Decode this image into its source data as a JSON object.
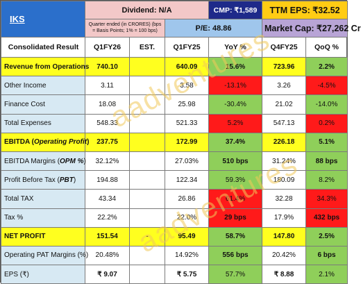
{
  "header": {
    "ticker": "IKS",
    "dividend": "Dividend: N/A",
    "cmp": "CMP: ₹1,589",
    "ttm_eps": "TTM EPS: ₹32.52",
    "note": "Quarter ended (in CRORES) (bps = Basis Points; 1% = 100 bps)",
    "pe": "P/E: 48.86",
    "market_cap": "Market Cap: ₹27,262 Cr"
  },
  "columns": [
    "Consolidated Result",
    "Q1FY26",
    "EST.",
    "Q1FY25",
    "YoY %",
    "Q4FY25",
    "QoQ %"
  ],
  "rows": [
    {
      "label": "Revenue from Operations",
      "q1fy26": "740.10",
      "est": "",
      "q1fy25": "640.09",
      "yoy": "15.6%",
      "q4fy25": "723.96",
      "qoq": "2.2%"
    },
    {
      "label": "Other Income",
      "q1fy26": "3.11",
      "est": "",
      "q1fy25": "3.58",
      "yoy": "-13.1%",
      "q4fy25": "3.26",
      "qoq": "-4.5%"
    },
    {
      "label": "Finance Cost",
      "q1fy26": "18.08",
      "est": "",
      "q1fy25": "25.98",
      "yoy": "-30.4%",
      "q4fy25": "21.02",
      "qoq": "-14.0%"
    },
    {
      "label": "Total Expenses",
      "q1fy26": "548.33",
      "est": "",
      "q1fy25": "521.33",
      "yoy": "5.2%",
      "q4fy25": "547.13",
      "qoq": "0.2%"
    },
    {
      "label_plain": "EBITDA (",
      "label_italic": "Operating Profit",
      "label_end": ")",
      "q1fy26": "237.75",
      "est": "",
      "q1fy25": "172.99",
      "yoy": "37.4%",
      "q4fy25": "226.18",
      "qoq": "5.1%"
    },
    {
      "label_plain": "EBITDA Margins (",
      "label_italic": "OPM %",
      "label_end": ")",
      "q1fy26": "32.12%",
      "est": "",
      "q1fy25": "27.03%",
      "yoy": "510 bps",
      "q4fy25": "31.24%",
      "qoq": "88 bps"
    },
    {
      "label_plain": "Profit Before Tax (",
      "label_italic": "PBT",
      "label_end": ")",
      "q1fy26": "194.88",
      "est": "",
      "q1fy25": "122.34",
      "yoy": "59.3%",
      "q4fy25": "180.09",
      "qoq": "8.2%"
    },
    {
      "label": "Total TAX",
      "q1fy26": "43.34",
      "est": "",
      "q1fy25": "26.86",
      "yoy": "61.4%",
      "q4fy25": "32.28",
      "qoq": "34.3%"
    },
    {
      "label": "Tax %",
      "q1fy26": "22.2%",
      "est": "",
      "q1fy25": "22.0%",
      "yoy": "29 bps",
      "q4fy25": "17.9%",
      "qoq": "432 bps"
    },
    {
      "label": "NET PROFIT",
      "q1fy26": "151.54",
      "est": "-",
      "q1fy25": "95.49",
      "yoy": "58.7%",
      "q4fy25": "147.80",
      "qoq": "2.5%"
    },
    {
      "label": "Operating PAT Margins (%)",
      "q1fy26": "20.48%",
      "est": "",
      "q1fy25": "14.92%",
      "yoy": "556 bps",
      "q4fy25": "20.42%",
      "qoq": "6 bps"
    },
    {
      "label": "EPS (₹)",
      "q1fy26": "₹ 9.07",
      "est": "",
      "q1fy25": "₹ 5.75",
      "yoy": "57.7%",
      "q4fy25": "₹ 8.88",
      "qoq": "2.1%"
    }
  ],
  "watermark": "aadventures",
  "colors": {
    "yellow": "#ffff1f",
    "green": "#8fcf5a",
    "red": "#ff1a1a",
    "blue": "#d7e9f3",
    "logo": "#2b6fcb",
    "cmp": "#1e2a8a",
    "ttm": "#ffcc14"
  }
}
